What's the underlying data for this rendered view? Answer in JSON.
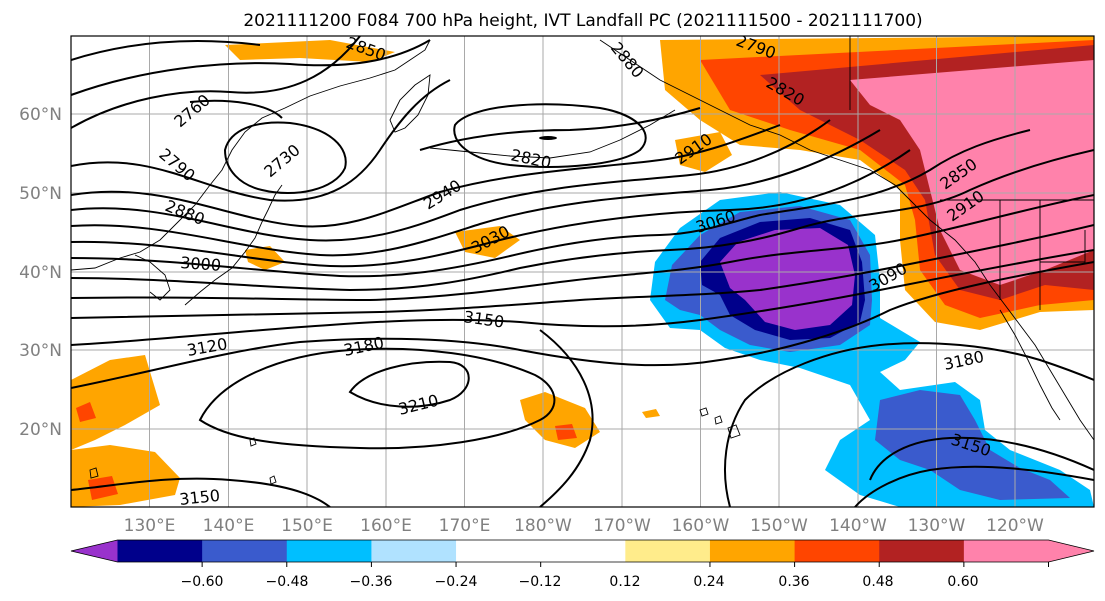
{
  "title": "2021111200 F084 700 hPa height, IVT Landfall PC (2021111500 - 2021111700)",
  "map": {
    "lat_labels": [
      "60°N",
      "50°N",
      "40°N",
      "30°N",
      "20°N"
    ],
    "lon_labels": [
      "130°E",
      "140°E",
      "150°E",
      "160°E",
      "170°E",
      "180°W",
      "170°W",
      "160°W",
      "150°W",
      "140°W",
      "130°W",
      "120°W"
    ],
    "contour_labels": [
      "2850",
      "2880",
      "2790",
      "2820",
      "2760",
      "2730",
      "2820",
      "2790",
      "2880",
      "2940",
      "3000",
      "3030",
      "3060",
      "2850",
      "2910",
      "3090",
      "3150",
      "3120",
      "3180",
      "3210",
      "3180",
      "3150",
      "3150",
      "2910"
    ]
  },
  "colorbar": {
    "colors": [
      "#9932CC",
      "#00008B",
      "#3A5BCD",
      "#00BFFF",
      "#B0E2FF",
      "#FFFFFF",
      "#FFFFFF",
      "#FFEC8B",
      "#FFA500",
      "#FF4500",
      "#B22222",
      "#FF82AB",
      "#FF82AB"
    ],
    "tick_labels": [
      "−0.60",
      "−0.48",
      "−0.36",
      "−0.24",
      "−0.12",
      "0.12",
      "0.24",
      "0.36",
      "0.48",
      "0.60"
    ]
  }
}
